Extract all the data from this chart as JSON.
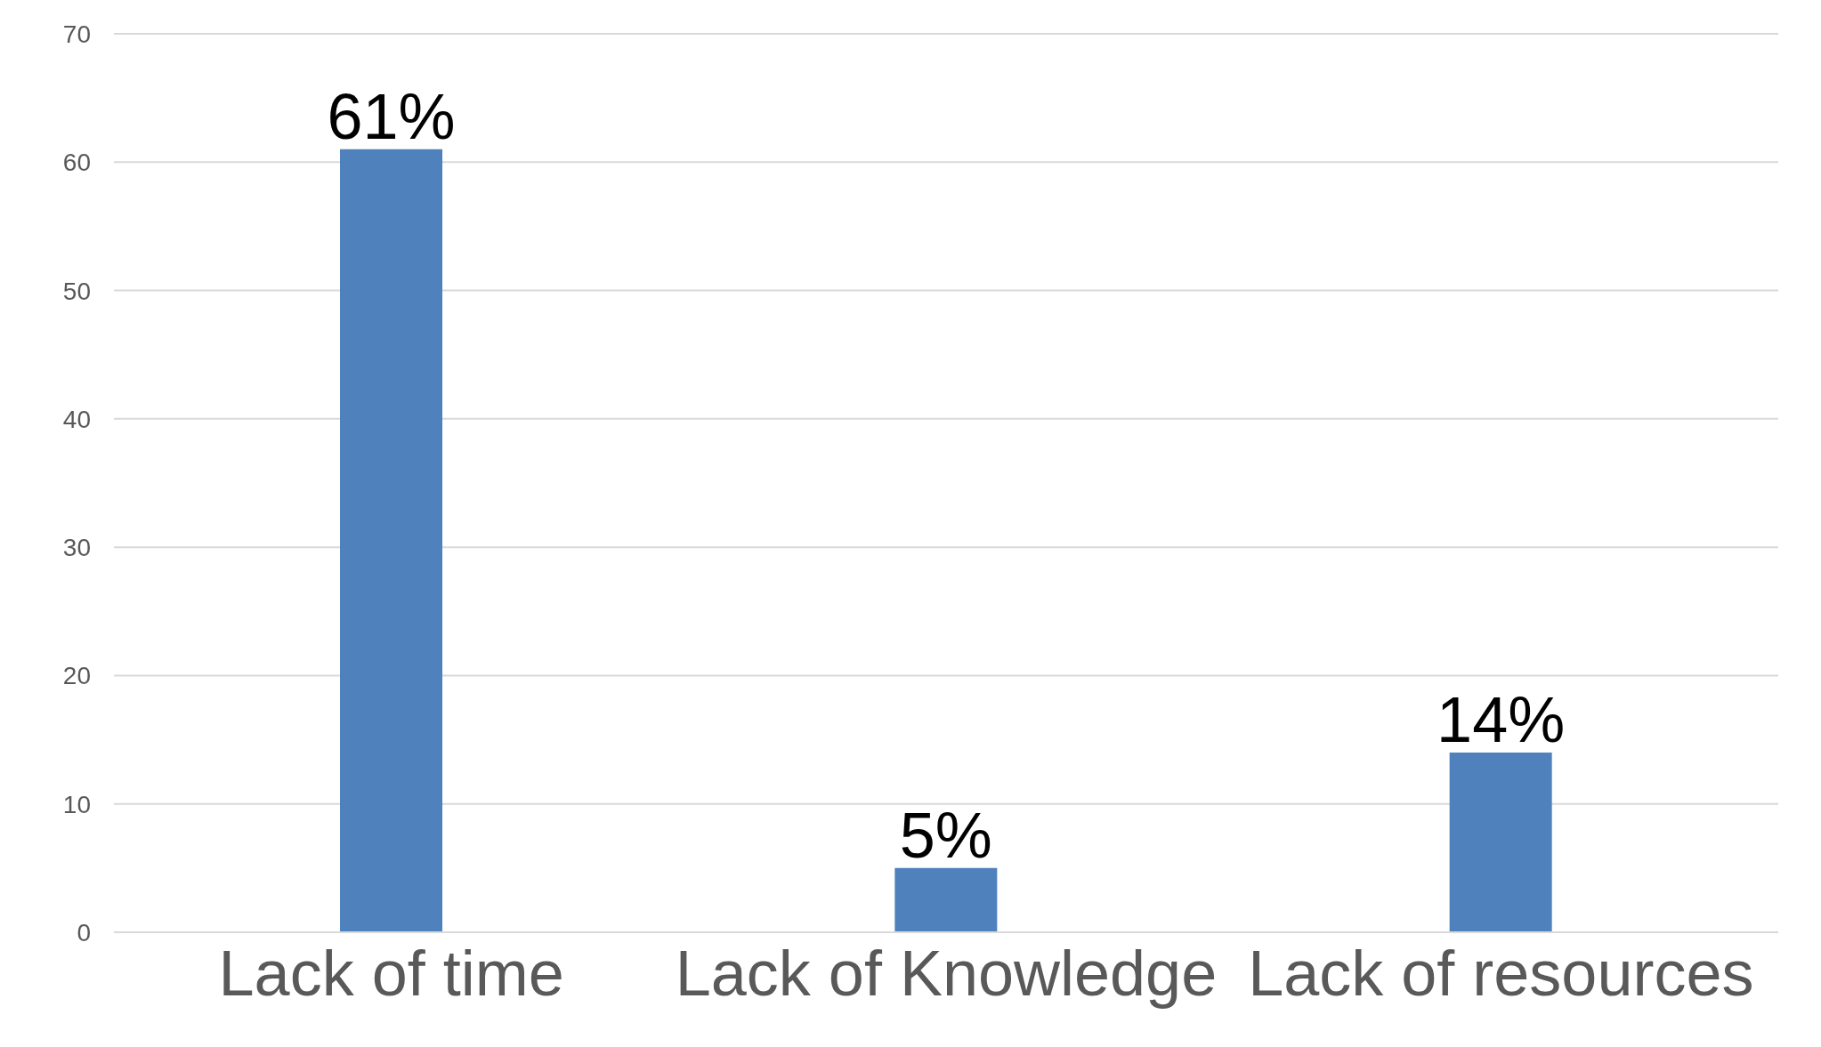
{
  "chart_data": {
    "type": "bar",
    "categories": [
      "Lack of time",
      "Lack of Knowledge",
      "Lack of resources"
    ],
    "values": [
      61,
      5,
      14
    ],
    "color": "#4f81bd",
    "value_labels": [
      "61%",
      "5%",
      "14%"
    ],
    "ylim": [
      0,
      70
    ],
    "yticks": [
      0,
      10,
      20,
      30,
      40,
      50,
      60,
      70
    ],
    "grid": "y"
  }
}
